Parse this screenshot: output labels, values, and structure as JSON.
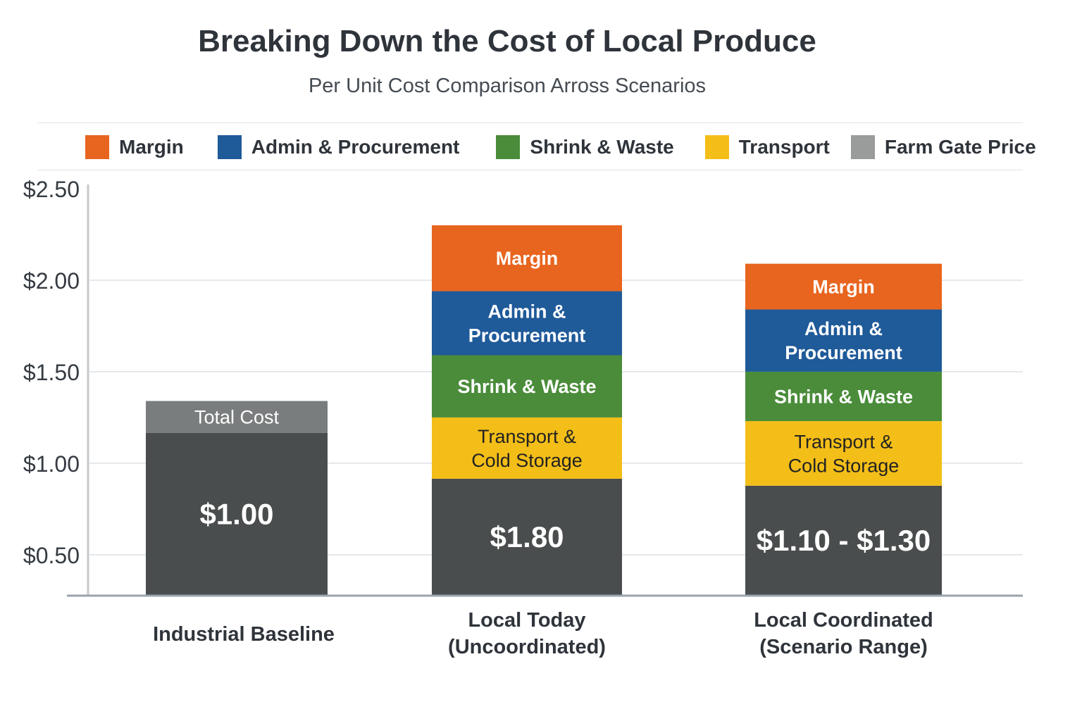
{
  "chart_data": {
    "type": "bar",
    "stacked": true,
    "title": "Breaking Down the Cost of Local Produce",
    "subtitle": "Per Unit Cost Comparison Arross Scenarios",
    "xlabel": "",
    "ylabel": "",
    "ylim": [
      0.28,
      2.5
    ],
    "yticks": [
      "$2.50",
      "$2.00",
      "$1.50",
      "$1.00",
      "$0.50"
    ],
    "ytick_values": [
      2.5,
      2.0,
      1.5,
      1.0,
      0.5
    ],
    "grid": true,
    "legend_placement": "top",
    "legend": [
      {
        "name": "Margin",
        "color": "#E8651F"
      },
      {
        "name": "Admin & Procurement",
        "color": "#1F5A99"
      },
      {
        "name": "Shrink & Waste",
        "color": "#4A8C3A"
      },
      {
        "name": "Transport",
        "color": "#F4BE18"
      },
      {
        "name": "Farm Gate Price",
        "color": "#9A9C9C"
      }
    ],
    "categories": [
      [
        "Industrial Baseline"
      ],
      [
        "Local Today",
        "(Uncoordinated)"
      ],
      [
        "Local Coordinated",
        "(Scenario Range)"
      ]
    ],
    "bars": [
      {
        "segments": [
          {
            "series": "Farm Gate Price",
            "from": 0.28,
            "to": 1.165,
            "color": "#4A4D4D",
            "label": [
              "$1.00"
            ],
            "label_color": "#ffffff",
            "big": true
          },
          {
            "series": "Total Cost",
            "from": 1.165,
            "to": 1.34,
            "color": "#7A7D7D",
            "label": [
              "Total Cost"
            ],
            "label_color": "#ffffff"
          }
        ]
      },
      {
        "segments": [
          {
            "series": "Farm Gate Price",
            "from": 0.28,
            "to": 0.915,
            "color": "#4A4D4D",
            "label": [
              "$1.80"
            ],
            "label_color": "#ffffff",
            "big": true
          },
          {
            "series": "Transport",
            "from": 0.915,
            "to": 1.25,
            "color": "#F4BE18",
            "label": [
              "Transport &",
              "Cold Storage"
            ],
            "label_color": "#222222"
          },
          {
            "series": "Shrink & Waste",
            "from": 1.25,
            "to": 1.59,
            "color": "#4A8C3A",
            "label": [
              "Shrink & Waste"
            ],
            "label_color": "#ffffff"
          },
          {
            "series": "Admin & Procurement",
            "from": 1.59,
            "to": 1.94,
            "color": "#1F5A99",
            "label": [
              "Admin &",
              "Procurement"
            ],
            "label_color": "#ffffff"
          },
          {
            "series": "Margin",
            "from": 1.94,
            "to": 2.3,
            "color": "#E8651F",
            "label": [
              "Margin"
            ],
            "label_color": "#ffffff"
          }
        ]
      },
      {
        "segments": [
          {
            "series": "Farm Gate Price",
            "from": 0.28,
            "to": 0.877,
            "color": "#4A4D4D",
            "label": [
              "$1.10 - $1.30"
            ],
            "label_color": "#ffffff",
            "big": true
          },
          {
            "series": "Transport",
            "from": 0.877,
            "to": 1.23,
            "color": "#F4BE18",
            "label": [
              "Transport &",
              "Cold Storage"
            ],
            "label_color": "#222222"
          },
          {
            "series": "Shrink & Waste",
            "from": 1.23,
            "to": 1.5,
            "color": "#4A8C3A",
            "label": [
              "Shrink & Waste"
            ],
            "label_color": "#ffffff"
          },
          {
            "series": "Admin & Procurement",
            "from": 1.5,
            "to": 1.84,
            "color": "#1F5A99",
            "label": [
              "Admin &",
              "Procurement"
            ],
            "label_color": "#ffffff"
          },
          {
            "series": "Margin",
            "from": 1.84,
            "to": 2.09,
            "color": "#E8651F",
            "label": [
              "Margin"
            ],
            "label_color": "#ffffff"
          }
        ]
      }
    ]
  }
}
